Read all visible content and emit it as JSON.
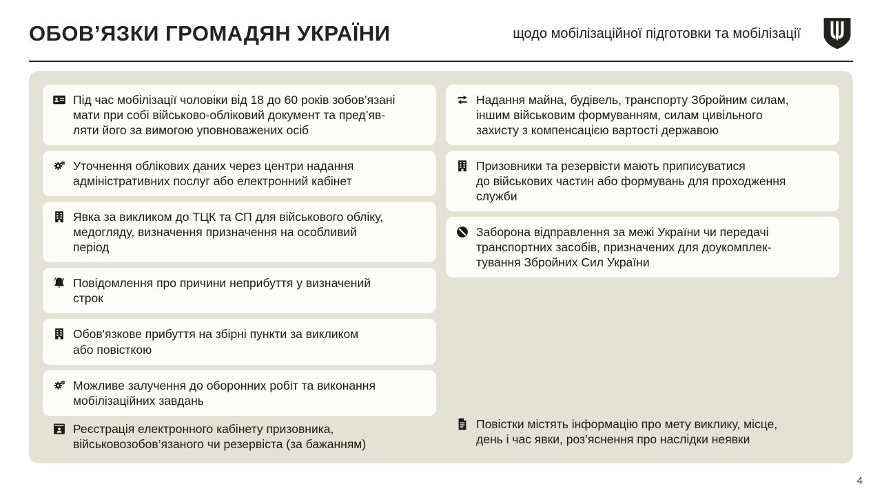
{
  "header": {
    "title": "ОБОВ’ЯЗКИ ГРОМАДЯН УКРАЇНИ",
    "subtitle": "щодо мобілізаційної підготовки та мобілізації",
    "logo_icon": "trident-shield"
  },
  "panel": {
    "left_column": {
      "cards": [
        {
          "icon": "id-card",
          "text": "Під час мобілізації чоловіки від 18 до 60 років зобов’язані\nмати при собі військово-обліковий документ та пред’яв-\nляти його за вимогою уповноважених осіб"
        },
        {
          "icon": "gears",
          "text": "Уточнення облікових даних через центри надання\nадміністративних послуг або електронний кабінет"
        },
        {
          "icon": "building",
          "text": "Явка за викликом до ТЦК та СП для військового обліку,\nмедогляду, визначення призначення на особливий\nперіод"
        },
        {
          "icon": "bell",
          "text": "Повідомлення про причини неприбуття у визначений\nстрок"
        },
        {
          "icon": "building",
          "text": "Обов'язкове прибуття на збірні пункти за викликом\nабо повісткою"
        },
        {
          "icon": "gears",
          "text": "Можливе залучення до оборонних робіт та виконання\nмобілізаційних завдань"
        }
      ],
      "footnote": {
        "icon": "e-cabinet",
        "text": "Реєстрація електронного кабінету призовника,\nвійськовозобов’язаного чи резервіста (за бажанням)"
      }
    },
    "right_column": {
      "cards": [
        {
          "icon": "exchange-arrows",
          "text": "Надання майна, будівель, транспорту Збройним силам,\nіншим військовим формуванням, силам цивільного\nзахисту з компенсацією вартості державою"
        },
        {
          "icon": "building",
          "text": "Призовники та резервісти мають приписуватися\nдо військових частин або формувань для проходження\nслужби"
        },
        {
          "icon": "prohibition",
          "text": "Заборона відправлення за межі України чи передачі\nтранспортних засобів, призначених для доукомплек-\nтування Збройних Сил України"
        }
      ],
      "footnote": {
        "icon": "document",
        "text": "Повістки містять інформацію про мету виклику, місце,\nдень і час явки, роз’яснення про наслідки неявки"
      }
    }
  },
  "footer": {
    "page_number": "4"
  },
  "colors": {
    "panel_bg": "#e4e1d5",
    "card_bg": "#fcfcf9",
    "text": "#1b1a15",
    "accent_dark": "#26251f"
  }
}
